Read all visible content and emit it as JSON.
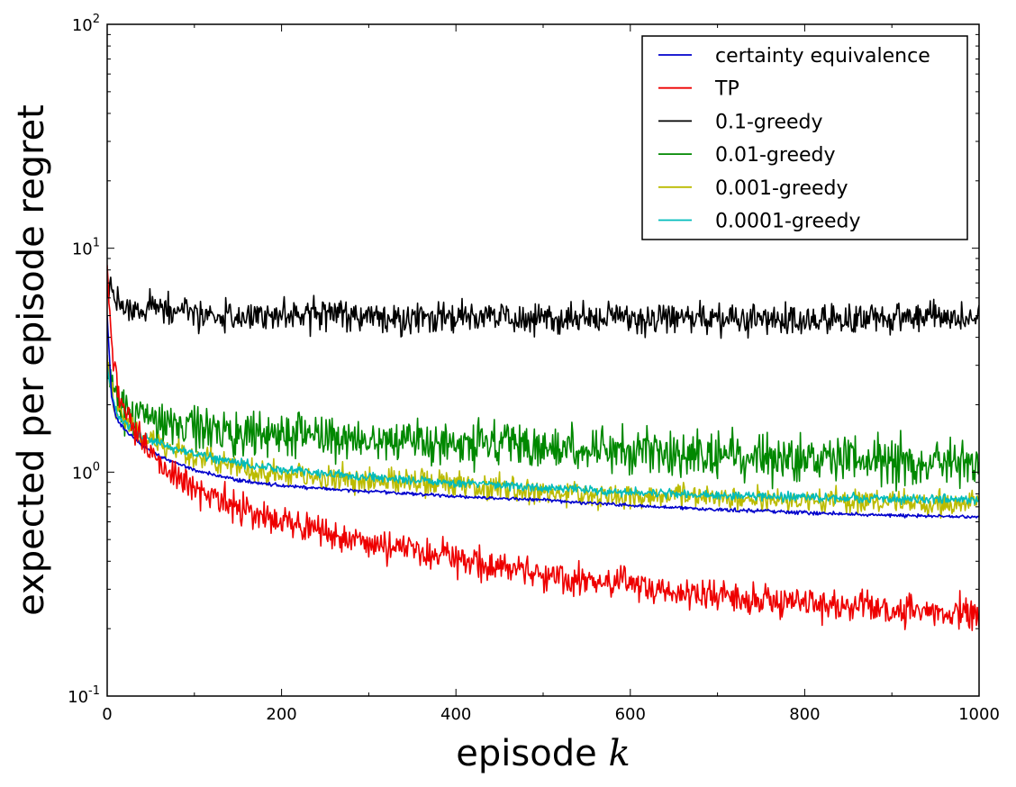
{
  "chart_data": {
    "type": "line",
    "title": "",
    "xlabel": "episode",
    "xlabel_var": "k",
    "ylabel": "expected per episode regret",
    "xscale": "linear",
    "yscale": "log",
    "xlim": [
      0,
      1000
    ],
    "ylim": [
      0.1,
      100
    ],
    "xticks": [
      "0",
      "200",
      "400",
      "600",
      "800",
      "1000"
    ],
    "yticks": [
      {
        "base": "10",
        "exp": "-1"
      },
      {
        "base": "10",
        "exp": "0"
      },
      {
        "base": "10",
        "exp": "1"
      },
      {
        "base": "10",
        "exp": "2"
      }
    ],
    "grid": false,
    "legend_position": "top-right",
    "series": [
      {
        "name": "certainty equivalence",
        "color": "#0000cc",
        "noise": 0.004,
        "points": [
          [
            0,
            5.0
          ],
          [
            5,
            2.2
          ],
          [
            10,
            1.75
          ],
          [
            20,
            1.55
          ],
          [
            40,
            1.32
          ],
          [
            60,
            1.18
          ],
          [
            100,
            1.02
          ],
          [
            150,
            0.92
          ],
          [
            200,
            0.87
          ],
          [
            300,
            0.82
          ],
          [
            400,
            0.78
          ],
          [
            500,
            0.75
          ],
          [
            600,
            0.71
          ],
          [
            700,
            0.68
          ],
          [
            800,
            0.66
          ],
          [
            900,
            0.64
          ],
          [
            1000,
            0.63
          ]
        ]
      },
      {
        "name": "TP",
        "color": "#ee0000",
        "noise": 0.035,
        "points": [
          [
            0,
            8.0
          ],
          [
            5,
            3.6
          ],
          [
            10,
            2.5
          ],
          [
            20,
            1.9
          ],
          [
            40,
            1.38
          ],
          [
            60,
            1.1
          ],
          [
            100,
            0.85
          ],
          [
            150,
            0.7
          ],
          [
            200,
            0.6
          ],
          [
            300,
            0.48
          ],
          [
            400,
            0.41
          ],
          [
            500,
            0.35
          ],
          [
            600,
            0.31
          ],
          [
            700,
            0.28
          ],
          [
            800,
            0.26
          ],
          [
            900,
            0.245
          ],
          [
            1000,
            0.235
          ]
        ]
      },
      {
        "name": "0.1-greedy",
        "color": "#000000",
        "noise": 0.035,
        "points": [
          [
            0,
            7.0
          ],
          [
            5,
            6.3
          ],
          [
            10,
            5.9
          ],
          [
            30,
            5.4
          ],
          [
            100,
            5.1
          ],
          [
            200,
            5.0
          ],
          [
            400,
            4.95
          ],
          [
            600,
            4.85
          ],
          [
            800,
            4.8
          ],
          [
            1000,
            4.9
          ]
        ]
      },
      {
        "name": "0.01-greedy",
        "color": "#008800",
        "noise": 0.05,
        "points": [
          [
            0,
            3.0
          ],
          [
            5,
            2.5
          ],
          [
            10,
            2.2
          ],
          [
            20,
            1.95
          ],
          [
            40,
            1.75
          ],
          [
            80,
            1.6
          ],
          [
            150,
            1.5
          ],
          [
            250,
            1.43
          ],
          [
            400,
            1.35
          ],
          [
            600,
            1.25
          ],
          [
            800,
            1.15
          ],
          [
            1000,
            1.1
          ]
        ]
      },
      {
        "name": "0.001-greedy",
        "color": "#bbbb00",
        "noise": 0.028,
        "points": [
          [
            0,
            3.2
          ],
          [
            5,
            2.3
          ],
          [
            10,
            1.9
          ],
          [
            20,
            1.7
          ],
          [
            40,
            1.45
          ],
          [
            70,
            1.3
          ],
          [
            100,
            1.18
          ],
          [
            150,
            1.05
          ],
          [
            200,
            0.98
          ],
          [
            300,
            0.92
          ],
          [
            400,
            0.88
          ],
          [
            500,
            0.82
          ],
          [
            600,
            0.78
          ],
          [
            700,
            0.76
          ],
          [
            800,
            0.74
          ],
          [
            900,
            0.73
          ],
          [
            1000,
            0.72
          ]
        ]
      },
      {
        "name": "0.0001-greedy",
        "color": "#00bbbb",
        "noise": 0.01,
        "points": [
          [
            0,
            3.0
          ],
          [
            5,
            2.2
          ],
          [
            10,
            1.85
          ],
          [
            20,
            1.65
          ],
          [
            40,
            1.45
          ],
          [
            70,
            1.3
          ],
          [
            100,
            1.2
          ],
          [
            150,
            1.1
          ],
          [
            200,
            1.02
          ],
          [
            300,
            0.95
          ],
          [
            400,
            0.9
          ],
          [
            500,
            0.85
          ],
          [
            600,
            0.81
          ],
          [
            700,
            0.79
          ],
          [
            800,
            0.77
          ],
          [
            900,
            0.76
          ],
          [
            1000,
            0.75
          ]
        ]
      }
    ]
  }
}
